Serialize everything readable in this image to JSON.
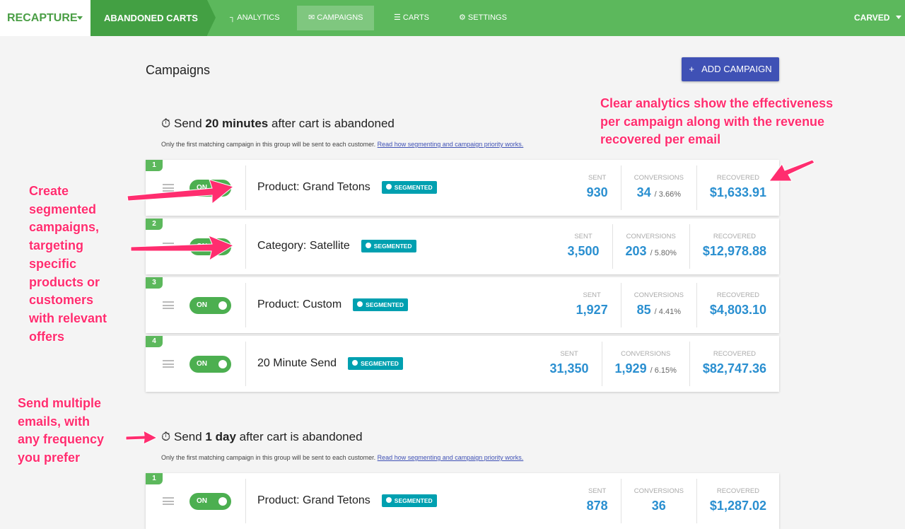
{
  "nav": {
    "brand": "RECAPTURE",
    "section": "ABANDONED CARTS",
    "items": [
      "ANALYTICS",
      "CAMPAIGNS",
      "CARTS",
      "SETTINGS"
    ],
    "active": 1,
    "account": "CARVED"
  },
  "page": {
    "title": "Campaigns",
    "button": "ADD CAMPAIGN"
  },
  "groups": [
    {
      "prefix": "Send",
      "bold": "20 minutes",
      "suffix": "after cart is abandoned",
      "note": "Only the first matching campaign in this group will be sent to each customer.",
      "link": "Read how segmenting and campaign priority works.",
      "campaigns": [
        {
          "priority": "1",
          "toggle": "ON",
          "name": "Product: Grand Tetons",
          "badge": "SEGMENTED",
          "sent_label": "SENT",
          "sent": "930",
          "conv_label": "CONVERSIONS",
          "conversions": "34",
          "rate": "/ 3.66%",
          "recovered_label": "RECOVERED",
          "recovered": "$1,633.91"
        },
        {
          "priority": "2",
          "toggle": "ON",
          "name": "Category: Satellite",
          "badge": "SEGMENTED",
          "sent_label": "SENT",
          "sent": "3,500",
          "conv_label": "CONVERSIONS",
          "conversions": "203",
          "rate": "/ 5.80%",
          "recovered_label": "RECOVERED",
          "recovered": "$12,978.88"
        },
        {
          "priority": "3",
          "toggle": "ON",
          "name": "Product: Custom",
          "badge": "SEGMENTED",
          "sent_label": "SENT",
          "sent": "1,927",
          "conv_label": "CONVERSIONS",
          "conversions": "85",
          "rate": "/ 4.41%",
          "recovered_label": "RECOVERED",
          "recovered": "$4,803.10"
        },
        {
          "priority": "4",
          "toggle": "ON",
          "name": "20 Minute Send",
          "badge": "SEGMENTED",
          "sent_label": "SENT",
          "sent": "31,350",
          "conv_label": "CONVERSIONS",
          "conversions": "1,929",
          "rate": "/ 6.15%",
          "recovered_label": "RECOVERED",
          "recovered": "$82,747.36"
        }
      ]
    },
    {
      "prefix": "Send",
      "bold": "1 day",
      "suffix": "after cart is abandoned",
      "note": "Only the first matching campaign in this group will be sent to each customer.",
      "link": "Read how segmenting and campaign priority works.",
      "campaigns": [
        {
          "priority": "1",
          "toggle": "ON",
          "name": "Product: Grand Tetons",
          "badge": "SEGMENTED",
          "sent_label": "SENT",
          "sent": "878",
          "conv_label": "CONVERSIONS",
          "conversions": "36",
          "recovered_label": "RECOVERED",
          "recovered": "$1,287.02"
        }
      ]
    }
  ],
  "annotations": [
    {
      "lines": [
        "Clear analytics show the effectiveness",
        "per campaign along with the revenue",
        "recovered per email"
      ]
    },
    {
      "lines": [
        "Create",
        "segmented",
        "campaigns,",
        "targeting",
        "specific",
        "products or",
        "customers",
        "with relevant",
        "offers"
      ]
    },
    {
      "lines": [
        "Send multiple",
        "emails, with",
        "any frequency",
        "you prefer"
      ]
    }
  ]
}
